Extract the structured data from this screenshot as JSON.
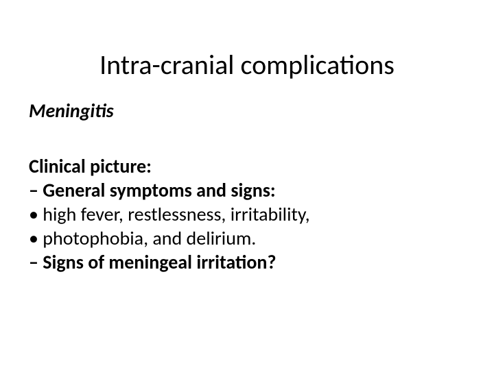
{
  "slide": {
    "title": "Intra-cranial complications",
    "subtitle": "Meningitis",
    "heading": "Clinical picture:",
    "lines": [
      {
        "text": "– General symptoms and signs:",
        "bold": true
      },
      {
        "text": "• high fever, restlessness, irritability,",
        "bold": false
      },
      {
        "text": "• photophobia, and delirium.",
        "bold": false
      },
      {
        "text": "– Signs of meningeal irritation?",
        "bold": true
      }
    ],
    "colors": {
      "background": "#ffffff",
      "text": "#000000"
    },
    "fonts": {
      "title_size": 40,
      "body_size": 28
    }
  }
}
